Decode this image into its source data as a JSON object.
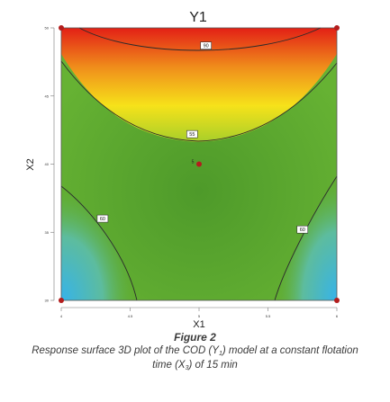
{
  "chart_data": {
    "type": "heatmap",
    "title": "Y1",
    "xlabel": "X1",
    "ylabel": "X2",
    "xlim": [
      4,
      6
    ],
    "ylim": [
      30,
      50
    ],
    "x_ticks": [
      {
        "value": 4,
        "label": "4"
      },
      {
        "value": 4.5,
        "label": "4.5"
      },
      {
        "value": 5,
        "label": "5"
      },
      {
        "value": 5.5,
        "label": "5.5"
      },
      {
        "value": 6,
        "label": "6"
      }
    ],
    "y_ticks": [
      {
        "value": 30,
        "label": "30"
      },
      {
        "value": 35,
        "label": "35"
      },
      {
        "value": 40,
        "label": "40"
      },
      {
        "value": 45,
        "label": "45"
      },
      {
        "value": 50,
        "label": "50"
      }
    ],
    "contours": [
      {
        "label": "90",
        "label_x": 5.05,
        "label_y": 48.7
      },
      {
        "label": "55",
        "label_x": 4.95,
        "label_y": 42.2
      },
      {
        "label": "60",
        "label_x": 4.3,
        "label_y": 36.0
      },
      {
        "label": "60",
        "label_x": 5.75,
        "label_y": 35.2
      }
    ],
    "center_point": {
      "x": 5,
      "y": 40,
      "label": "5"
    },
    "design_points": [
      {
        "x": 4,
        "y": 50
      },
      {
        "x": 6,
        "y": 50
      },
      {
        "x": 4,
        "y": 30
      },
      {
        "x": 6,
        "y": 30
      },
      {
        "x": 5,
        "y": 40
      }
    ],
    "colors": {
      "high": "#e32016",
      "mid": "#f6e21a",
      "base": "#5fad2f",
      "low": "#36b3ea",
      "point": "#b31d1d"
    },
    "grid": false
  },
  "caption": {
    "title": "Figure 2",
    "line1_pre": "Response surface 3D plot of the COD (Y",
    "line1_sub": "1",
    "line1_post": ") model at a constant flotation",
    "line2_pre": "time (X",
    "line2_sub": "3",
    "line2_post": ") of 15 min"
  }
}
